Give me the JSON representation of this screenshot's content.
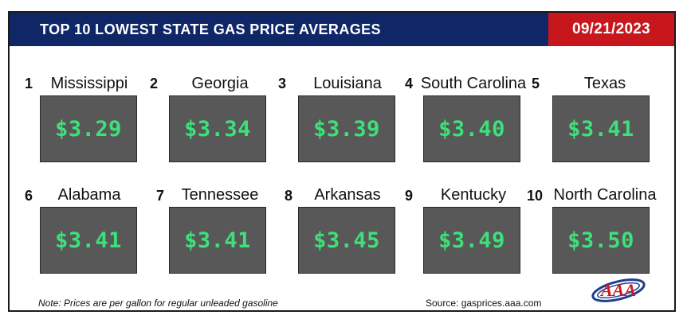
{
  "header": {
    "title": "TOP 10 LOWEST STATE GAS PRICE AVERAGES",
    "date": "09/21/2023"
  },
  "colors": {
    "header_bg": "#0f2767",
    "date_bg": "#c8161d",
    "price_box_bg": "#585858",
    "price_text": "#3ee07a"
  },
  "states": [
    {
      "rank": "1",
      "name": "Mississippi",
      "price": "$3.29"
    },
    {
      "rank": "2",
      "name": "Georgia",
      "price": "$3.34"
    },
    {
      "rank": "3",
      "name": "Louisiana",
      "price": "$3.39"
    },
    {
      "rank": "4",
      "name": "South Carolina",
      "price": "$3.40"
    },
    {
      "rank": "5",
      "name": "Texas",
      "price": "$3.41"
    },
    {
      "rank": "6",
      "name": "Alabama",
      "price": "$3.41"
    },
    {
      "rank": "7",
      "name": "Tennessee",
      "price": "$3.41"
    },
    {
      "rank": "8",
      "name": "Arkansas",
      "price": "$3.45"
    },
    {
      "rank": "9",
      "name": "Kentucky",
      "price": "$3.49"
    },
    {
      "rank": "10",
      "name": "North Carolina",
      "price": "$3.50"
    }
  ],
  "footer": {
    "note": "Note: Prices are per gallon for regular unleaded gasoline",
    "source": "Source: gasprices.aaa.com",
    "logo_text": "AAA"
  }
}
